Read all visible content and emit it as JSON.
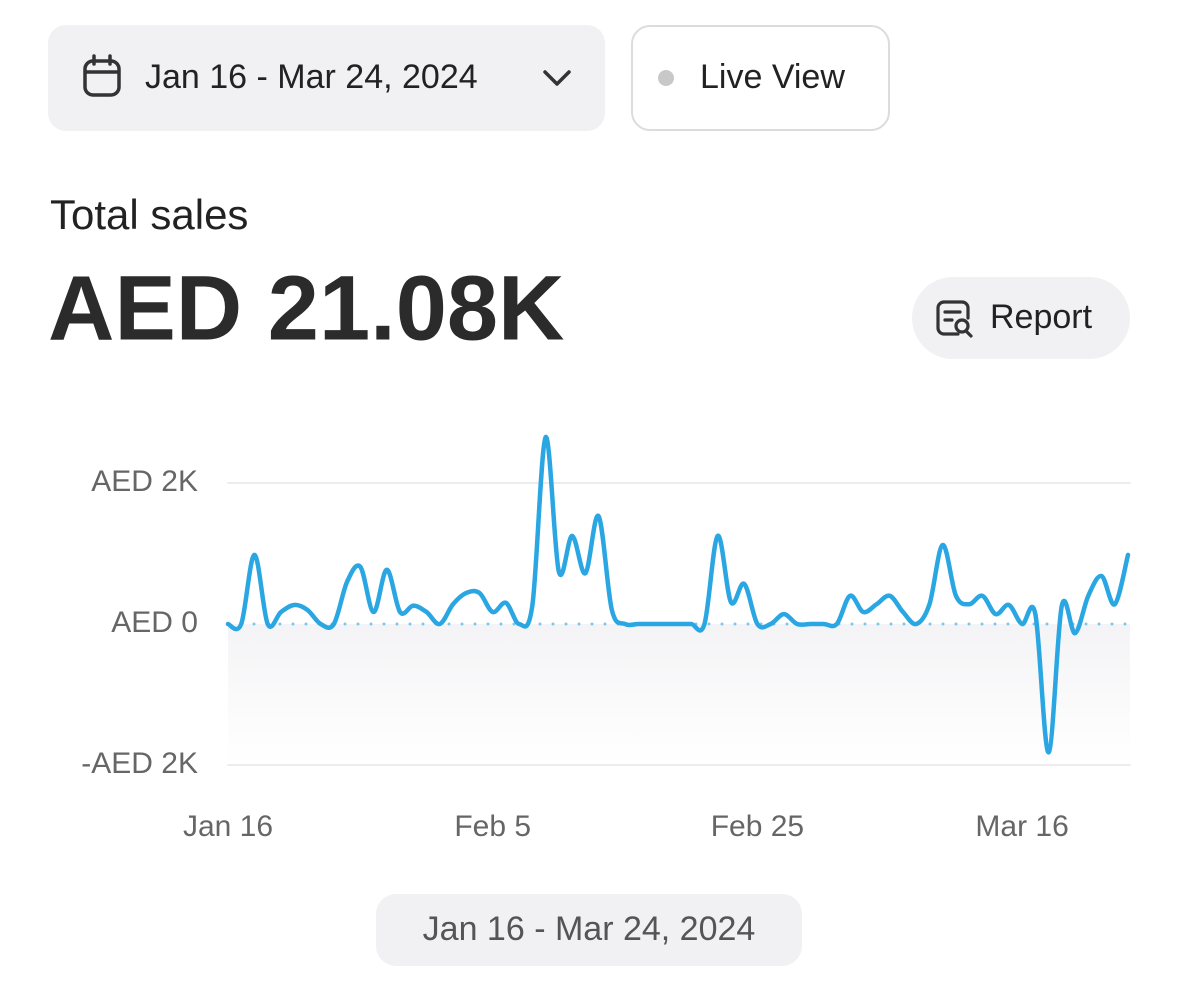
{
  "date_button": {
    "label": "Jan 16 - Mar 24, 2024"
  },
  "live_view_button": {
    "label": "Live View"
  },
  "summary": {
    "title": "Total sales",
    "value": "AED 21.08K"
  },
  "report_button": {
    "label": "Report"
  },
  "chart_data": {
    "type": "line",
    "x": [
      "Jan 16",
      "Jan 17",
      "Jan 18",
      "Jan 19",
      "Jan 20",
      "Jan 21",
      "Jan 22",
      "Jan 23",
      "Jan 24",
      "Jan 25",
      "Jan 26",
      "Jan 27",
      "Jan 28",
      "Jan 29",
      "Jan 30",
      "Jan 31",
      "Feb 1",
      "Feb 2",
      "Feb 3",
      "Feb 4",
      "Feb 5",
      "Feb 6",
      "Feb 7",
      "Feb 8",
      "Feb 9",
      "Feb 10",
      "Feb 11",
      "Feb 12",
      "Feb 13",
      "Feb 14",
      "Feb 15",
      "Feb 16",
      "Feb 17",
      "Feb 18",
      "Feb 19",
      "Feb 20",
      "Feb 21",
      "Feb 22",
      "Feb 23",
      "Feb 24",
      "Feb 25",
      "Feb 26",
      "Feb 27",
      "Feb 28",
      "Feb 29",
      "Mar 1",
      "Mar 2",
      "Mar 3",
      "Mar 4",
      "Mar 5",
      "Mar 6",
      "Mar 7",
      "Mar 8",
      "Mar 9",
      "Mar 10",
      "Mar 11",
      "Mar 12",
      "Mar 13",
      "Mar 14",
      "Mar 15",
      "Mar 16",
      "Mar 17",
      "Mar 18",
      "Mar 19",
      "Mar 20",
      "Mar 21",
      "Mar 22",
      "Mar 23",
      "Mar 24"
    ],
    "values": [
      0,
      0,
      980,
      0,
      170,
      270,
      200,
      0,
      0,
      600,
      810,
      170,
      770,
      170,
      260,
      170,
      0,
      280,
      440,
      440,
      170,
      300,
      0,
      270,
      2650,
      740,
      1250,
      720,
      1530,
      200,
      0,
      0,
      0,
      0,
      0,
      0,
      0,
      1250,
      310,
      570,
      0,
      0,
      140,
      0,
      0,
      0,
      0,
      400,
      170,
      280,
      400,
      170,
      0,
      280,
      1120,
      400,
      280,
      400,
      140,
      270,
      0,
      140,
      -1820,
      260,
      -130,
      400,
      680,
      280,
      980
    ],
    "color": "#2aa7e3",
    "ylim": [
      -2000,
      2700
    ],
    "yticks": [
      {
        "value": -2000,
        "label": "-AED 2K"
      },
      {
        "value": 0,
        "label": "AED 0"
      },
      {
        "value": 2000,
        "label": "AED 2K"
      }
    ],
    "xticks": [
      "Jan 16",
      "Feb 5",
      "Feb 25",
      "Mar 16"
    ],
    "grid": true
  },
  "range_label": "Jan 16 - Mar 24, 2024"
}
